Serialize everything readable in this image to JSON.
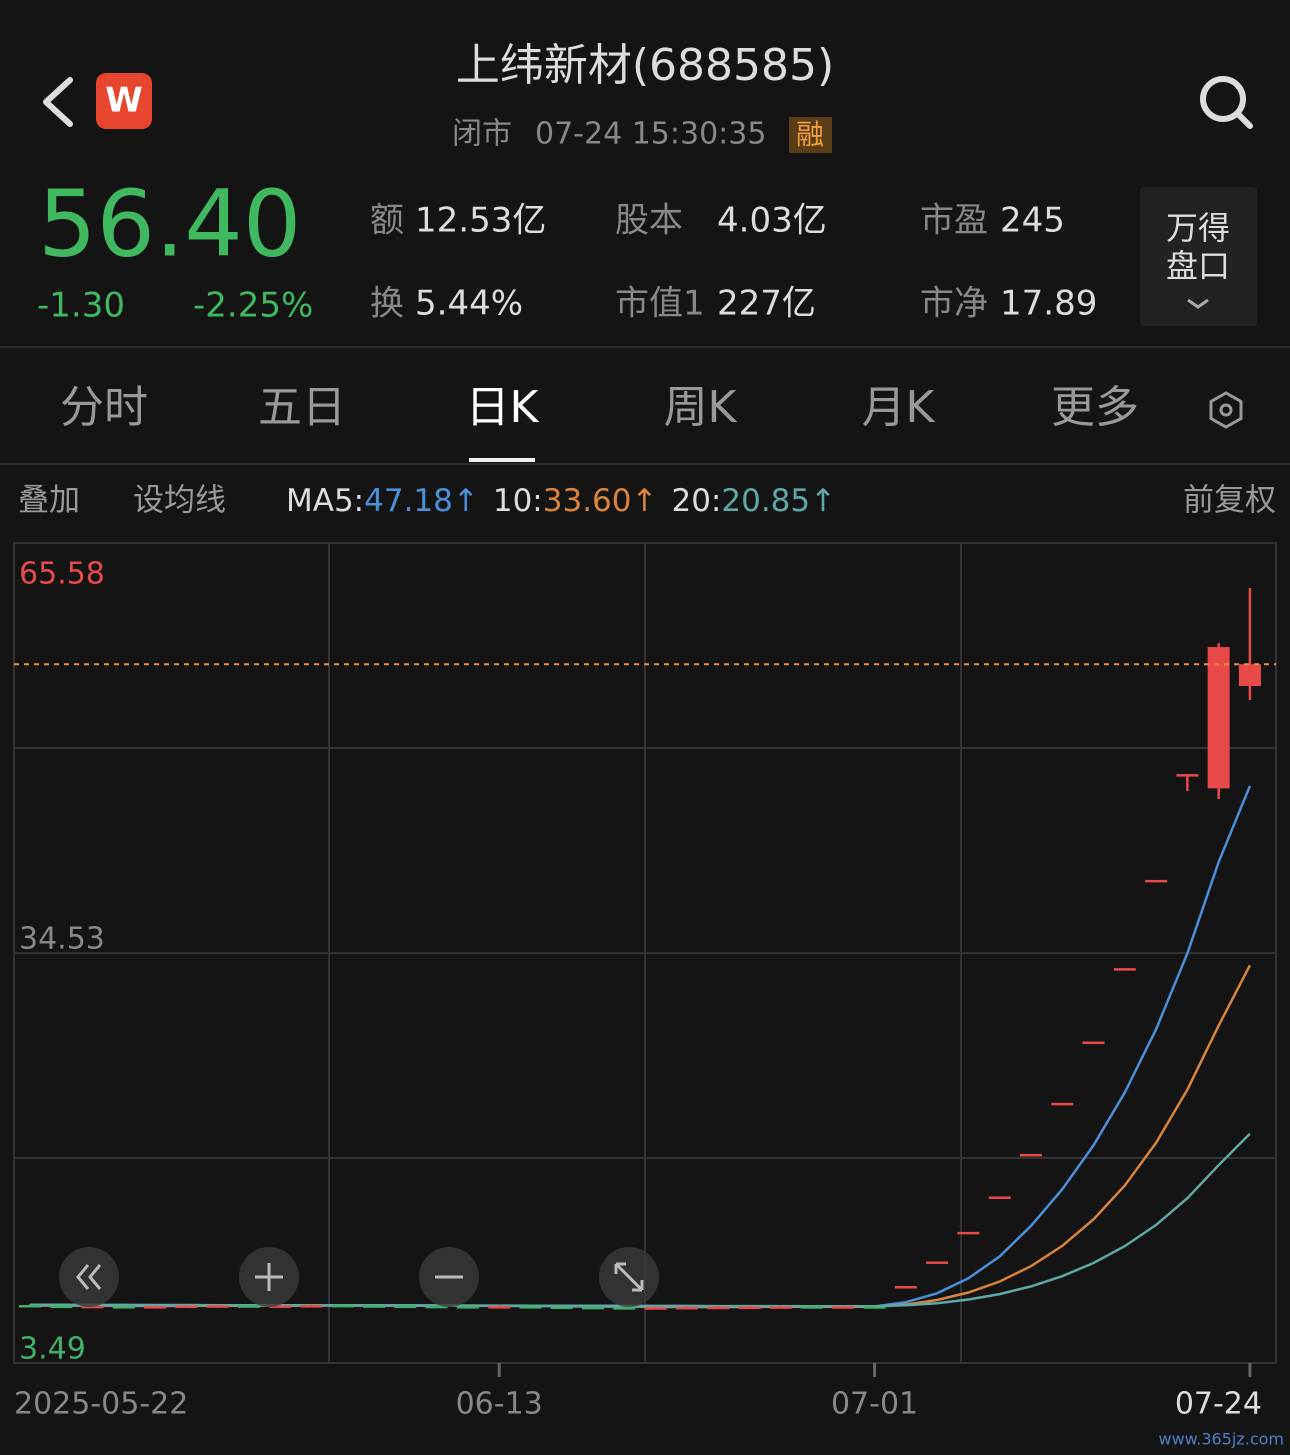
{
  "header": {
    "title": "上纬新材(688585)",
    "status": "闭市",
    "time": "07-24 15:30:35",
    "badge": "融",
    "app_icon": "W"
  },
  "quote": {
    "price": "56.40",
    "change": "-1.30",
    "change_pct": "-2.25%",
    "stats": [
      {
        "label": "额",
        "value": "12.53亿"
      },
      {
        "label": "股本",
        "value": "4.03亿"
      },
      {
        "label": "市盈",
        "value": "245"
      },
      {
        "label": "换",
        "value": "5.44%"
      },
      {
        "label": "市值1",
        "value": "227亿"
      },
      {
        "label": "市净",
        "value": "17.89"
      }
    ],
    "depth_button": [
      "万得",
      "盘口"
    ]
  },
  "tabs": {
    "items": [
      "分时",
      "五日",
      "日K",
      "周K",
      "月K",
      "更多"
    ],
    "active": 2
  },
  "indicators": {
    "overlay": "叠加",
    "set_ma": "设均线",
    "adjust": "前复权",
    "ma": [
      {
        "label": "MA5:",
        "value": "47.18",
        "arrow": "↑"
      },
      {
        "label": "10:",
        "value": "33.60",
        "arrow": "↑"
      },
      {
        "label": "20:",
        "value": "20.85",
        "arrow": "↑"
      }
    ]
  },
  "chart": {
    "type": "candlestick",
    "up_color": "#e84a4a",
    "down_color": "#43b06a",
    "ylim": [
      3.49,
      65.58
    ],
    "yticks": [
      65.58,
      34.53,
      3.49
    ],
    "categories": [
      "2025-05-22",
      null,
      null,
      null,
      null,
      null,
      null,
      null,
      null,
      null,
      null,
      null,
      null,
      null,
      null,
      "06-13",
      null,
      null,
      null,
      null,
      null,
      null,
      null,
      null,
      null,
      null,
      null,
      "07-01",
      null,
      null,
      null,
      null,
      null,
      null,
      null,
      null,
      null,
      null,
      null,
      "07-24"
    ],
    "open": [
      7.88,
      7.84,
      7.8,
      7.8,
      7.78,
      7.81,
      7.83,
      7.86,
      7.83,
      7.85,
      7.89,
      7.86,
      7.84,
      7.82,
      7.8,
      7.77,
      7.8,
      7.77,
      7.74,
      7.72,
      7.7,
      7.71,
      7.73,
      7.74,
      7.76,
      7.79,
      7.77,
      7.79,
      9.32,
      11.18,
      13.42,
      16.1,
      19.32,
      23.19,
      27.83,
      33.39,
      40.07,
      48.08,
      47.0,
      54.75
    ],
    "high": [
      7.93,
      7.89,
      7.87,
      7.85,
      7.85,
      7.89,
      7.91,
      7.91,
      7.9,
      7.93,
      7.94,
      7.91,
      7.89,
      7.87,
      7.85,
      7.85,
      7.85,
      7.82,
      7.79,
      7.77,
      7.76,
      7.78,
      7.8,
      7.81,
      7.83,
      7.84,
      7.84,
      7.84,
      9.32,
      11.18,
      13.42,
      16.1,
      19.32,
      23.19,
      27.83,
      33.39,
      40.07,
      48.08,
      58.0,
      62.17
    ],
    "low": [
      7.8,
      7.75,
      7.75,
      7.73,
      7.73,
      7.76,
      7.78,
      7.78,
      7.78,
      7.8,
      7.81,
      7.79,
      7.77,
      7.75,
      7.73,
      7.72,
      7.72,
      7.69,
      7.67,
      7.65,
      7.65,
      7.66,
      7.68,
      7.69,
      7.71,
      7.72,
      7.72,
      7.72,
      9.32,
      11.18,
      13.42,
      16.1,
      19.32,
      23.19,
      27.83,
      33.39,
      40.07,
      46.8,
      46.2,
      53.69
    ],
    "close": [
      7.85,
      7.8,
      7.82,
      7.78,
      7.8,
      7.84,
      7.86,
      7.83,
      7.85,
      7.88,
      7.86,
      7.84,
      7.82,
      7.8,
      7.78,
      7.8,
      7.77,
      7.74,
      7.72,
      7.7,
      7.71,
      7.73,
      7.75,
      7.76,
      7.78,
      7.77,
      7.79,
      7.77,
      9.32,
      11.18,
      13.42,
      16.1,
      19.32,
      23.19,
      27.83,
      33.39,
      40.07,
      48.08,
      57.7,
      56.4
    ],
    "lines": [
      {
        "color": "#4a8fd8",
        "values": [
          7.84,
          7.83,
          7.82,
          7.81,
          7.8,
          7.81,
          7.82,
          7.83,
          7.84,
          7.85,
          7.86,
          7.86,
          7.85,
          7.84,
          7.82,
          7.81,
          7.8,
          7.78,
          7.76,
          7.75,
          7.73,
          7.72,
          7.72,
          7.73,
          7.75,
          7.76,
          7.77,
          7.77,
          8.09,
          8.77,
          9.9,
          11.56,
          13.87,
          16.64,
          19.97,
          23.97,
          28.76,
          34.51,
          41.41,
          47.18
        ]
      },
      {
        "color": "#d9843a",
        "values": [
          7.86,
          7.86,
          7.85,
          7.85,
          7.84,
          7.84,
          7.83,
          7.83,
          7.83,
          7.84,
          7.84,
          7.84,
          7.84,
          7.84,
          7.84,
          7.83,
          7.82,
          7.81,
          7.8,
          7.78,
          7.77,
          7.76,
          7.75,
          7.75,
          7.75,
          7.75,
          7.75,
          7.75,
          7.91,
          8.26,
          8.83,
          9.66,
          10.82,
          12.36,
          14.37,
          16.93,
          20.16,
          24.19,
          29.03,
          33.6
        ]
      },
      {
        "color": "#5fa8a8",
        "values": [
          7.9,
          7.9,
          7.89,
          7.89,
          7.88,
          7.88,
          7.87,
          7.87,
          7.86,
          7.86,
          7.85,
          7.85,
          7.85,
          7.85,
          7.84,
          7.84,
          7.83,
          7.83,
          7.82,
          7.82,
          7.81,
          7.81,
          7.8,
          7.8,
          7.8,
          7.79,
          7.79,
          7.79,
          7.87,
          8.02,
          8.3,
          8.71,
          9.29,
          10.06,
          11.06,
          12.34,
          13.95,
          15.97,
          18.47,
          20.85
        ]
      }
    ]
  },
  "watermark": "www.365jz.com"
}
